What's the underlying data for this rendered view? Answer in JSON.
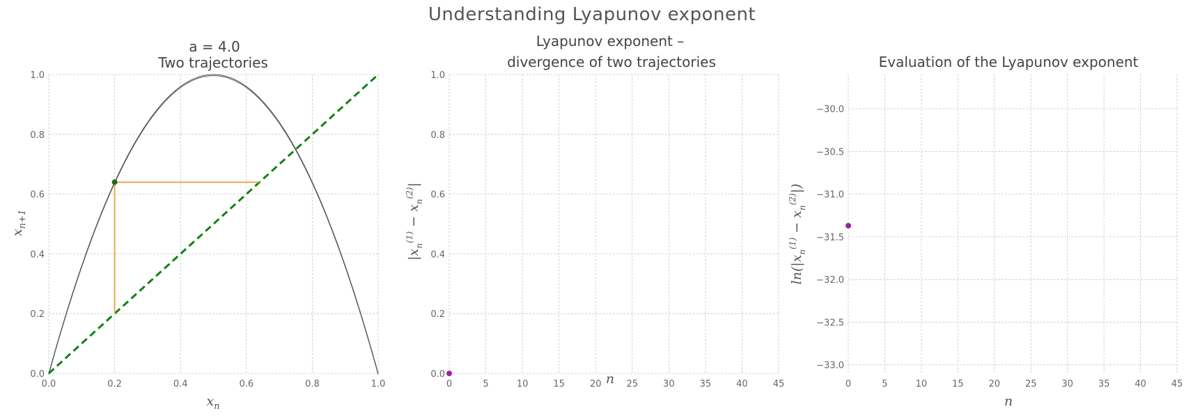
{
  "figure": {
    "suptitle": "Understanding Lyapunov exponent"
  },
  "chart_data": [
    {
      "type": "line",
      "title_lines": [
        "a = 4.0",
        "Two trajectories"
      ],
      "xlabel": "x_n",
      "ylabel": "x_{n+1}",
      "xlim": [
        0.0,
        1.0
      ],
      "ylim": [
        0.0,
        1.0
      ],
      "xticks": [
        "0.0",
        "0.2",
        "0.4",
        "0.6",
        "0.8",
        "1.0"
      ],
      "yticks": [
        "0.0",
        "0.2",
        "0.4",
        "0.6",
        "0.8",
        "1.0"
      ],
      "grid": true,
      "param_a": 4.0,
      "series": [
        {
          "kind": "logistic-map",
          "a": 4.0,
          "color": "#555555"
        },
        {
          "kind": "identity-diagonal",
          "x": [
            0.0,
            1.0
          ],
          "y": [
            0.0,
            1.0
          ],
          "color": "#128012",
          "style": "dashed"
        },
        {
          "kind": "cobweb",
          "x": [
            0.2,
            0.2,
            0.64
          ],
          "y": [
            0.2,
            0.64,
            0.64
          ],
          "color": "#e8a84a"
        }
      ],
      "points": [
        {
          "x": 0.2,
          "y": 0.64,
          "color": "#1f6b1f"
        }
      ]
    },
    {
      "type": "scatter",
      "title_lines": [
        "Lyapunov exponent –",
        "divergence of two trajectories"
      ],
      "xlabel": "n",
      "ylabel": "|x_n^{(1)} − x_n^{(2)}|",
      "xlim": [
        0,
        45
      ],
      "ylim": [
        0.0,
        1.0
      ],
      "xticks": [
        "0",
        "5",
        "10",
        "15",
        "20",
        "25",
        "30",
        "35",
        "40",
        "45"
      ],
      "yticks": [
        "0.0",
        "0.2",
        "0.4",
        "0.6",
        "0.8",
        "1.0"
      ],
      "grid": true,
      "points": [
        {
          "x": 0,
          "y": 0.0,
          "color": "#a020a0"
        }
      ]
    },
    {
      "type": "scatter",
      "title_lines": [
        "Evaluation of the Lyapunov exponent"
      ],
      "xlabel": "n",
      "ylabel": "ln(|x_n^{(1)} − x_n^{(2)}|)",
      "xlim": [
        0,
        45
      ],
      "ylim": [
        -33.1,
        -29.6
      ],
      "xticks": [
        "0",
        "5",
        "10",
        "15",
        "20",
        "25",
        "30",
        "35",
        "40",
        "45"
      ],
      "yticks": [
        "−30.0",
        "−30.5",
        "−31.0",
        "−31.5",
        "−32.0",
        "−32.5",
        "−33.0"
      ],
      "ytick_values": [
        -30.0,
        -30.5,
        -31.0,
        -31.5,
        -32.0,
        -32.5,
        -33.0
      ],
      "grid": true,
      "points": [
        {
          "x": 0,
          "y": -31.37,
          "color": "#a020a0"
        }
      ]
    }
  ]
}
